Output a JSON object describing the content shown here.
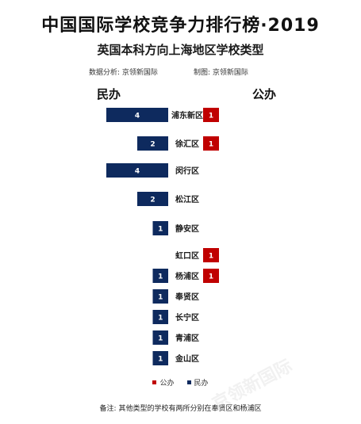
{
  "header": {
    "title": "中国国际学校竞争力排行榜·2019",
    "subtitle": "英国本科方向上海地区学校类型",
    "source": "数据分析: 京领新国际",
    "producer": "制图: 京领新国际",
    "left_heading": "民办",
    "right_heading": "公办"
  },
  "chart_data": {
    "type": "bar",
    "orientation": "horizontal-butterfly",
    "categories": [
      "浦东新区",
      "徐汇区",
      "闵行区",
      "松江区",
      "静安区",
      "虹口区",
      "杨浦区",
      "奉贤区",
      "长宁区",
      "青浦区",
      "金山区"
    ],
    "series": [
      {
        "name": "民办",
        "color": "#0e2a5e",
        "values": [
          4,
          2,
          4,
          2,
          1,
          0,
          1,
          1,
          1,
          1,
          1
        ]
      },
      {
        "name": "公办",
        "color": "#c00000",
        "values": [
          1,
          1,
          0,
          0,
          0,
          1,
          1,
          0,
          0,
          0,
          0
        ]
      }
    ],
    "title": "英国本科方向上海地区学校类型",
    "legend_position": "bottom",
    "grid": false
  },
  "legend": [
    {
      "label": "公办",
      "color": "#c00000"
    },
    {
      "label": "民办",
      "color": "#0e2a5e"
    }
  ],
  "note": "备注: 其他类型的学校有两所分别在奉贤区和杨浦区",
  "watermark": "京领新国际"
}
